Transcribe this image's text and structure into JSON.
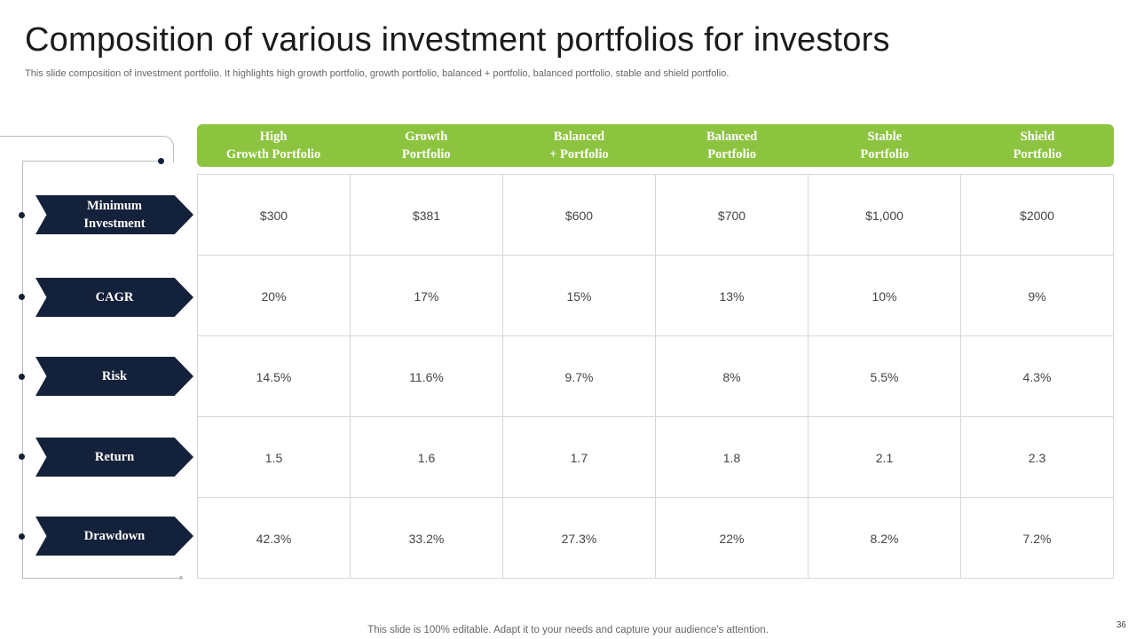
{
  "slide": {
    "title": "Composition of various investment portfolios for investors",
    "subtitle": "This slide composition of investment portfolio. It highlights high growth portfolio, growth portfolio, balanced + portfolio, balanced portfolio, stable and shield portfolio.",
    "footer": "This slide is 100% editable. Adapt it to your needs and capture your audience's attention.",
    "page_number": "36"
  },
  "table": {
    "columns": [
      "High\nGrowth  Portfolio",
      "Growth\nPortfolio",
      "Balanced\n+ Portfolio",
      "Balanced\nPortfolio",
      "Stable\nPortfolio",
      "Shield\nPortfolio"
    ],
    "rows": [
      {
        "label": "Minimum\nInvestment",
        "values": [
          "$300",
          "$381",
          "$600",
          "$700",
          "$1,000",
          "$2000"
        ]
      },
      {
        "label": "CAGR",
        "values": [
          "20%",
          "17%",
          "15%",
          "13%",
          "10%",
          "9%"
        ]
      },
      {
        "label": "Risk",
        "values": [
          "14.5%",
          "11.6%",
          "9.7%",
          "8%",
          "5.5%",
          "4.3%"
        ]
      },
      {
        "label": "Return",
        "values": [
          "1.5",
          "1.6",
          "1.7",
          "1.8",
          "2.1",
          "2.3"
        ]
      },
      {
        "label": "Drawdown",
        "values": [
          "42.3%",
          "33.2%",
          "27.3%",
          "22%",
          "8.2%",
          "7.2%"
        ]
      }
    ]
  },
  "colors": {
    "header_green": "#8cc43f",
    "label_navy": "#14213a"
  }
}
